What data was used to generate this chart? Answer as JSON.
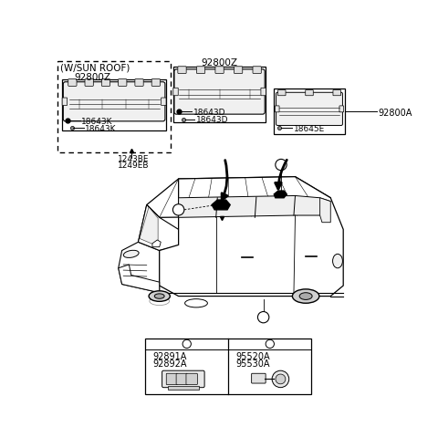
{
  "bg_color": "#ffffff",
  "line_color": "#000000",
  "sunroof_box_label": "(W/SUN ROOF)",
  "sunroof_part": "92800Z",
  "center_part": "92800Z",
  "rear_part": "92800A",
  "label_18643K_1": "18643K",
  "label_18643K_2": "18643K",
  "label_18643D_1": "18643D",
  "label_18643D_2": "18643D",
  "label_18645E": "18645E",
  "label_1243BE": "1243BE",
  "label_1249EB": "1249EB",
  "label_a": "a",
  "label_b": "b",
  "bottom_a": "a",
  "bottom_b": "b",
  "part_92891A": "92891A",
  "part_92892A": "92892A",
  "part_95520A": "95520A",
  "part_95530A": "95530A"
}
